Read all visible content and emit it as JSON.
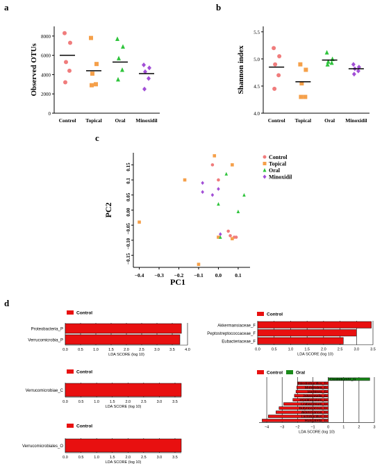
{
  "colors": {
    "Control": "#f07c7c",
    "Topical": "#f5a04a",
    "Oral": "#2fc43c",
    "Minoxidil": "#a24fd6",
    "lda_control": "#e81010",
    "lda_oral": "#1a8a1a"
  },
  "panel_letters": {
    "a": "a",
    "b": "b",
    "c": "c",
    "d": "d"
  },
  "chart_data": [
    {
      "id": "a",
      "type": "scatter",
      "ylabel": "Observed OTUs",
      "categories": [
        "Control",
        "Topical",
        "Oral",
        "Minoxidil"
      ],
      "yticks": [
        0,
        2000,
        4000,
        6000,
        8000
      ],
      "ylim": [
        0,
        9000
      ],
      "markers": [
        "circle",
        "square",
        "triangle",
        "diamond"
      ],
      "points": [
        [
          8300,
          7300,
          5300,
          4400,
          3200
        ],
        [
          7800,
          5100,
          4100,
          3000,
          2900
        ],
        [
          7700,
          6900,
          5700,
          4500,
          3500
        ],
        [
          5000,
          4700,
          4300,
          3600,
          2500
        ]
      ],
      "means": [
        6000,
        4400,
        5300,
        4100
      ]
    },
    {
      "id": "b",
      "type": "scatter",
      "ylabel": "Shannon index",
      "categories": [
        "Control",
        "Topical",
        "Oral",
        "Minoxidil"
      ],
      "yticks": [
        4.0,
        4.5,
        5.0,
        5.5
      ],
      "ytick_labels": [
        "4.0",
        "4.5",
        "5.0",
        "5.5"
      ],
      "ylim": [
        4.0,
        5.6
      ],
      "markers": [
        "circle",
        "square",
        "triangle",
        "diamond"
      ],
      "points": [
        [
          5.2,
          5.05,
          4.9,
          4.7,
          4.45
        ],
        [
          4.9,
          4.8,
          4.55,
          4.3,
          4.3
        ],
        [
          5.12,
          5.0,
          4.95,
          4.93,
          4.9
        ],
        [
          4.9,
          4.85,
          4.82,
          4.78,
          4.72
        ]
      ],
      "means": [
        4.85,
        4.58,
        4.98,
        4.82
      ]
    },
    {
      "id": "c",
      "type": "scatter",
      "xlabel": "PC1",
      "ylabel": "PC2",
      "xticks": [
        -0.4,
        -0.3,
        -0.2,
        -0.1,
        0.0,
        0.1
      ],
      "xtick_labels": [
        "−0.4",
        "−0.3",
        "−0.2",
        "−0.1",
        "0.0",
        "0.1"
      ],
      "yticks": [
        -0.15,
        -0.1,
        -0.05,
        0.0,
        0.05,
        0.1,
        0.15
      ],
      "ytick_labels": [
        "−0.15",
        "−0.10",
        "−0.05",
        "0.00",
        "0.05",
        "0.1",
        "0.15"
      ],
      "xlim": [
        -0.43,
        0.16
      ],
      "ylim": [
        -0.19,
        0.19
      ],
      "legend_position": "top-right",
      "series": [
        {
          "name": "Control",
          "marker": "circle",
          "x": [
            -0.03,
            0.0,
            0.05,
            0.08,
            0.09,
            0.06
          ],
          "y": [
            0.15,
            0.1,
            -0.07,
            -0.09,
            -0.09,
            -0.085
          ]
        },
        {
          "name": "Topical",
          "marker": "square",
          "x": [
            -0.4,
            -0.17,
            -0.02,
            0.07,
            -0.1,
            0.0,
            0.07
          ],
          "y": [
            -0.04,
            0.1,
            0.18,
            0.15,
            -0.18,
            -0.09,
            -0.095
          ]
        },
        {
          "name": "Oral",
          "marker": "triangle",
          "x": [
            0.04,
            0.0,
            0.13,
            0.1,
            0.01
          ],
          "y": [
            0.12,
            0.02,
            0.05,
            -0.005,
            -0.09
          ]
        },
        {
          "name": "Minoxidil",
          "marker": "diamond",
          "x": [
            -0.08,
            -0.08,
            0.0,
            -0.03,
            0.01
          ],
          "y": [
            0.09,
            0.06,
            0.07,
            0.05,
            -0.08
          ]
        }
      ]
    },
    {
      "id": "d1",
      "type": "bar",
      "orientation": "horizontal",
      "legend": [
        "Control"
      ],
      "categories": [
        "Proteobacteria_P",
        "Verrucomicrobia_P"
      ],
      "values": [
        3.8,
        3.75
      ],
      "xticks": [
        0.0,
        0.5,
        1.0,
        1.5,
        2.0,
        2.5,
        3.0,
        3.5,
        4.0
      ],
      "xtick_labels": [
        "0.0",
        "0.5",
        "1.0",
        "1.5",
        "2.0",
        "2.5",
        "3.0",
        "3.5",
        "4.0"
      ],
      "xlim": [
        0.0,
        4.0
      ],
      "xlabel": "LDA SCORE (log 10)"
    },
    {
      "id": "d2",
      "type": "bar",
      "orientation": "horizontal",
      "legend": [
        "Control"
      ],
      "categories": [
        "Verrucomicrobiae_C"
      ],
      "values": [
        3.7
      ],
      "xticks": [
        0.0,
        0.5,
        1.0,
        1.5,
        2.0,
        2.5,
        3.0,
        3.5
      ],
      "xtick_labels": [
        "0.0",
        "0.5",
        "1.0",
        "1.5",
        "2.0",
        "2.5",
        "3.0",
        "3.5"
      ],
      "xlim": [
        0.0,
        3.7
      ],
      "xlabel": "LDA SCORE (log 10)"
    },
    {
      "id": "d3",
      "type": "bar",
      "orientation": "horizontal",
      "legend": [
        "Control"
      ],
      "categories": [
        "Verrucomicrobiales_O"
      ],
      "values": [
        3.7
      ],
      "xticks": [
        0.0,
        0.5,
        1.0,
        1.5,
        2.0,
        2.5,
        3.0,
        3.5
      ],
      "xtick_labels": [
        "0.0",
        "0.5",
        "1.0",
        "1.5",
        "2.0",
        "2.5",
        "3.0",
        "3.5"
      ],
      "xlim": [
        0.0,
        3.7
      ],
      "xlabel": "LDA SCORE (log 10)"
    },
    {
      "id": "d4",
      "type": "bar",
      "orientation": "horizontal",
      "legend": [
        "Control"
      ],
      "categories": [
        "Akkermansiaceae_F",
        "Peptostreptococcaceae_F",
        "Eubacteriaceae_F"
      ],
      "values": [
        3.45,
        3.0,
        2.6
      ],
      "xticks": [
        0.0,
        0.5,
        1.0,
        1.5,
        2.0,
        2.5,
        3.0,
        3.5
      ],
      "xtick_labels": [
        "0.0",
        "0.5",
        "1.0",
        "1.5",
        "2.0",
        "2.5",
        "3.0",
        "3.5"
      ],
      "xlim": [
        0.0,
        3.5
      ],
      "xlabel": "LDA SCORE (log 10)"
    },
    {
      "id": "d5",
      "type": "bar",
      "orientation": "horizontal",
      "legend": [
        "Control",
        "Oral"
      ],
      "categories": [
        "ClostridiumIV_G",
        "Intestinibacillus_G",
        "Mobilitalea_G",
        "Harbinos_G",
        "Johnsonella_G",
        "Tepidibaculum_G",
        "Cnibacterium_G",
        "Butyricicoccus_G",
        "Akkermansia_G",
        "Lactobacillus_G",
        "Hungatella_G"
      ],
      "values": [
        2.7,
        -2.0,
        -2.05,
        -2.1,
        -2.2,
        -2.3,
        -2.9,
        -3.2,
        -3.4,
        -3.9,
        -4.3
      ],
      "groups": [
        "Oral",
        "Control",
        "Control",
        "Control",
        "Control",
        "Control",
        "Control",
        "Control",
        "Control",
        "Control",
        "Control"
      ],
      "xticks": [
        -4,
        -3,
        -2,
        -1,
        0,
        1,
        2,
        3
      ],
      "xtick_labels": [
        "−4",
        "−3",
        "−2",
        "−1",
        "0",
        "1",
        "2",
        "3"
      ],
      "xlim": [
        -4.5,
        3.0
      ],
      "xlabel": "LDA SCORE (log 10)"
    }
  ]
}
